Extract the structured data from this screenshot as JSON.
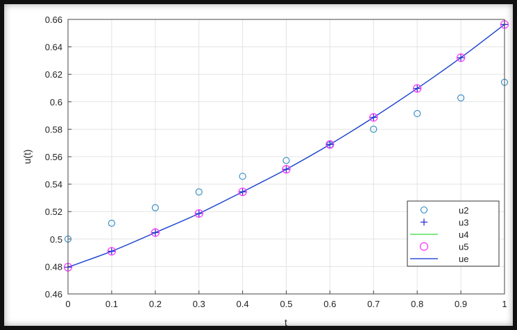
{
  "chart_data": {
    "type": "scatter",
    "xlabel": "t",
    "ylabel": "u(t)",
    "xlim": [
      0,
      1
    ],
    "ylim": [
      0.46,
      0.66
    ],
    "x_ticks": [
      0,
      0.1,
      0.2,
      0.3,
      0.4,
      0.5,
      0.6,
      0.7,
      0.8,
      0.9,
      1
    ],
    "x_tick_labels": [
      "0",
      "0.1",
      "0.2",
      "0.3",
      "0.4",
      "0.5",
      "0.6",
      "0.7",
      "0.8",
      "0.9",
      "1"
    ],
    "y_ticks": [
      0.46,
      0.48,
      0.5,
      0.52,
      0.54,
      0.56,
      0.58,
      0.6,
      0.62,
      0.64,
      0.66
    ],
    "y_tick_labels": [
      "0.46",
      "0.48",
      "0.5",
      "0.52",
      "0.54",
      "0.56",
      "0.58",
      "0.6",
      "0.62",
      "0.64",
      "0.66"
    ],
    "grid": true,
    "legend_position": "bottom-right",
    "x": [
      0,
      0.1,
      0.2,
      0.3,
      0.4,
      0.5,
      0.6,
      0.7,
      0.8,
      0.9,
      1
    ],
    "series": [
      {
        "name": "u2",
        "marker": "circle",
        "color": "#3a8fc4",
        "values": [
          0.5,
          0.5115,
          0.5228,
          0.5343,
          0.5457,
          0.5572,
          0.5686,
          0.58,
          0.5914,
          0.6028,
          0.6142
        ]
      },
      {
        "name": "u3",
        "marker": "plus",
        "color": "#2a2fc9",
        "values": [
          0.4795,
          0.4911,
          0.5047,
          0.5186,
          0.5344,
          0.5508,
          0.5689,
          0.5886,
          0.6097,
          0.6321,
          0.6563
        ]
      },
      {
        "name": "u4",
        "marker": "line",
        "color": "#55e055",
        "values": [
          0.4795,
          0.4911,
          0.5047,
          0.5186,
          0.5344,
          0.5508,
          0.5689,
          0.5886,
          0.6097,
          0.6321,
          0.6563
        ]
      },
      {
        "name": "u5",
        "marker": "circle",
        "color": "#ff2fff",
        "values": [
          0.4795,
          0.4911,
          0.5047,
          0.5186,
          0.5344,
          0.5508,
          0.5689,
          0.5886,
          0.6097,
          0.6321,
          0.6563
        ]
      },
      {
        "name": "ue",
        "marker": "line",
        "color": "#1f3fd6",
        "values": [
          0.4795,
          0.4911,
          0.5047,
          0.5186,
          0.5344,
          0.5508,
          0.5689,
          0.5886,
          0.6097,
          0.6321,
          0.6563
        ]
      }
    ]
  }
}
